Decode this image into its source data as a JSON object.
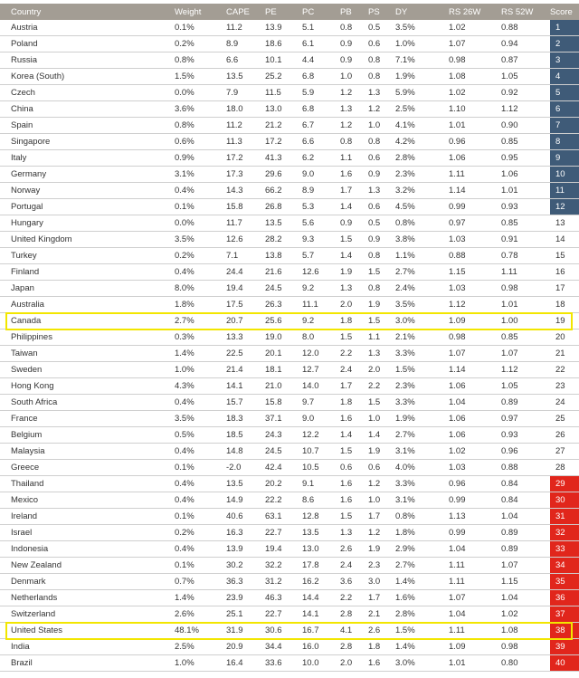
{
  "chart_data": {
    "type": "table",
    "columns": [
      "Country",
      "Weight",
      "CAPE",
      "PE",
      "PC",
      "PB",
      "PS",
      "DY",
      "RS 26W",
      "RS 52W",
      "Score"
    ],
    "rows": [
      [
        "Austria",
        "0.1%",
        "11.2",
        "13.9",
        "5.1",
        "0.8",
        "0.5",
        "3.5%",
        "1.02",
        "0.88",
        "1"
      ],
      [
        "Poland",
        "0.2%",
        "8.9",
        "18.6",
        "6.1",
        "0.9",
        "0.6",
        "1.0%",
        "1.07",
        "0.94",
        "2"
      ],
      [
        "Russia",
        "0.8%",
        "6.6",
        "10.1",
        "4.4",
        "0.9",
        "0.8",
        "7.1%",
        "0.98",
        "0.87",
        "3"
      ],
      [
        "Korea (South)",
        "1.5%",
        "13.5",
        "25.2",
        "6.8",
        "1.0",
        "0.8",
        "1.9%",
        "1.08",
        "1.05",
        "4"
      ],
      [
        "Czech",
        "0.0%",
        "7.9",
        "11.5",
        "5.9",
        "1.2",
        "1.3",
        "5.9%",
        "1.02",
        "0.92",
        "5"
      ],
      [
        "China",
        "3.6%",
        "18.0",
        "13.0",
        "6.8",
        "1.3",
        "1.2",
        "2.5%",
        "1.10",
        "1.12",
        "6"
      ],
      [
        "Spain",
        "0.8%",
        "11.2",
        "21.2",
        "6.7",
        "1.2",
        "1.0",
        "4.1%",
        "1.01",
        "0.90",
        "7"
      ],
      [
        "Singapore",
        "0.6%",
        "11.3",
        "17.2",
        "6.6",
        "0.8",
        "0.8",
        "4.2%",
        "0.96",
        "0.85",
        "8"
      ],
      [
        "Italy",
        "0.9%",
        "17.2",
        "41.3",
        "6.2",
        "1.1",
        "0.6",
        "2.8%",
        "1.06",
        "0.95",
        "9"
      ],
      [
        "Germany",
        "3.1%",
        "17.3",
        "29.6",
        "9.0",
        "1.6",
        "0.9",
        "2.3%",
        "1.11",
        "1.06",
        "10"
      ],
      [
        "Norway",
        "0.4%",
        "14.3",
        "66.2",
        "8.9",
        "1.7",
        "1.3",
        "3.2%",
        "1.14",
        "1.01",
        "11"
      ],
      [
        "Portugal",
        "0.1%",
        "15.8",
        "26.8",
        "5.3",
        "1.4",
        "0.6",
        "4.5%",
        "0.99",
        "0.93",
        "12"
      ],
      [
        "Hungary",
        "0.0%",
        "11.7",
        "13.5",
        "5.6",
        "0.9",
        "0.5",
        "0.8%",
        "0.97",
        "0.85",
        "13"
      ],
      [
        "United Kingdom",
        "3.5%",
        "12.6",
        "28.2",
        "9.3",
        "1.5",
        "0.9",
        "3.8%",
        "1.03",
        "0.91",
        "14"
      ],
      [
        "Turkey",
        "0.2%",
        "7.1",
        "13.8",
        "5.7",
        "1.4",
        "0.8",
        "1.1%",
        "0.88",
        "0.78",
        "15"
      ],
      [
        "Finland",
        "0.4%",
        "24.4",
        "21.6",
        "12.6",
        "1.9",
        "1.5",
        "2.7%",
        "1.15",
        "1.11",
        "16"
      ],
      [
        "Japan",
        "8.0%",
        "19.4",
        "24.5",
        "9.2",
        "1.3",
        "0.8",
        "2.4%",
        "1.03",
        "0.98",
        "17"
      ],
      [
        "Australia",
        "1.8%",
        "17.5",
        "26.3",
        "11.1",
        "2.0",
        "1.9",
        "3.5%",
        "1.12",
        "1.01",
        "18"
      ],
      [
        "Canada",
        "2.7%",
        "20.7",
        "25.6",
        "9.2",
        "1.8",
        "1.5",
        "3.0%",
        "1.09",
        "1.00",
        "19"
      ],
      [
        "Philippines",
        "0.3%",
        "13.3",
        "19.0",
        "8.0",
        "1.5",
        "1.1",
        "2.1%",
        "0.98",
        "0.85",
        "20"
      ],
      [
        "Taiwan",
        "1.4%",
        "22.5",
        "20.1",
        "12.0",
        "2.2",
        "1.3",
        "3.3%",
        "1.07",
        "1.07",
        "21"
      ],
      [
        "Sweden",
        "1.0%",
        "21.4",
        "18.1",
        "12.7",
        "2.4",
        "2.0",
        "1.5%",
        "1.14",
        "1.12",
        "22"
      ],
      [
        "Hong Kong",
        "4.3%",
        "14.1",
        "21.0",
        "14.0",
        "1.7",
        "2.2",
        "2.3%",
        "1.06",
        "1.05",
        "23"
      ],
      [
        "South Africa",
        "0.4%",
        "15.7",
        "15.8",
        "9.7",
        "1.8",
        "1.5",
        "3.3%",
        "1.04",
        "0.89",
        "24"
      ],
      [
        "France",
        "3.5%",
        "18.3",
        "37.1",
        "9.0",
        "1.6",
        "1.0",
        "1.9%",
        "1.06",
        "0.97",
        "25"
      ],
      [
        "Belgium",
        "0.5%",
        "18.5",
        "24.3",
        "12.2",
        "1.4",
        "1.4",
        "2.7%",
        "1.06",
        "0.93",
        "26"
      ],
      [
        "Malaysia",
        "0.4%",
        "14.8",
        "24.5",
        "10.7",
        "1.5",
        "1.9",
        "3.1%",
        "1.02",
        "0.96",
        "27"
      ],
      [
        "Greece",
        "0.1%",
        "-2.0",
        "42.4",
        "10.5",
        "0.6",
        "0.6",
        "4.0%",
        "1.03",
        "0.88",
        "28"
      ],
      [
        "Thailand",
        "0.4%",
        "13.5",
        "20.2",
        "9.1",
        "1.6",
        "1.2",
        "3.3%",
        "0.96",
        "0.84",
        "29"
      ],
      [
        "Mexico",
        "0.4%",
        "14.9",
        "22.2",
        "8.6",
        "1.6",
        "1.0",
        "3.1%",
        "0.99",
        "0.84",
        "30"
      ],
      [
        "Ireland",
        "0.1%",
        "40.6",
        "63.1",
        "12.8",
        "1.5",
        "1.7",
        "0.8%",
        "1.13",
        "1.04",
        "31"
      ],
      [
        "Israel",
        "0.2%",
        "16.3",
        "22.7",
        "13.5",
        "1.3",
        "1.2",
        "1.8%",
        "0.99",
        "0.89",
        "32"
      ],
      [
        "Indonesia",
        "0.4%",
        "13.9",
        "19.4",
        "13.0",
        "2.6",
        "1.9",
        "2.9%",
        "1.04",
        "0.89",
        "33"
      ],
      [
        "New Zealand",
        "0.1%",
        "30.2",
        "32.2",
        "17.8",
        "2.4",
        "2.3",
        "2.7%",
        "1.11",
        "1.07",
        "34"
      ],
      [
        "Denmark",
        "0.7%",
        "36.3",
        "31.2",
        "16.2",
        "3.6",
        "3.0",
        "1.4%",
        "1.11",
        "1.15",
        "35"
      ],
      [
        "Netherlands",
        "1.4%",
        "23.9",
        "46.3",
        "14.4",
        "2.2",
        "1.7",
        "1.6%",
        "1.07",
        "1.04",
        "36"
      ],
      [
        "Switzerland",
        "2.6%",
        "25.1",
        "22.7",
        "14.1",
        "2.8",
        "2.1",
        "2.8%",
        "1.04",
        "1.02",
        "37"
      ],
      [
        "United States",
        "48.1%",
        "31.9",
        "30.6",
        "16.7",
        "4.1",
        "2.6",
        "1.5%",
        "1.11",
        "1.08",
        "38"
      ],
      [
        "India",
        "2.5%",
        "20.9",
        "34.4",
        "16.0",
        "2.8",
        "1.8",
        "1.4%",
        "1.09",
        "0.98",
        "39"
      ],
      [
        "Brazil",
        "1.0%",
        "16.4",
        "33.6",
        "10.0",
        "2.0",
        "1.6",
        "3.0%",
        "1.01",
        "0.80",
        "40"
      ]
    ],
    "highlighted_rows": [
      "Canada",
      "United States"
    ],
    "score_colors": {
      "top": "#3f5b78",
      "bottom": "#e1261c"
    },
    "header_color": "#a39d94",
    "highlight_color": "#f2e600"
  }
}
